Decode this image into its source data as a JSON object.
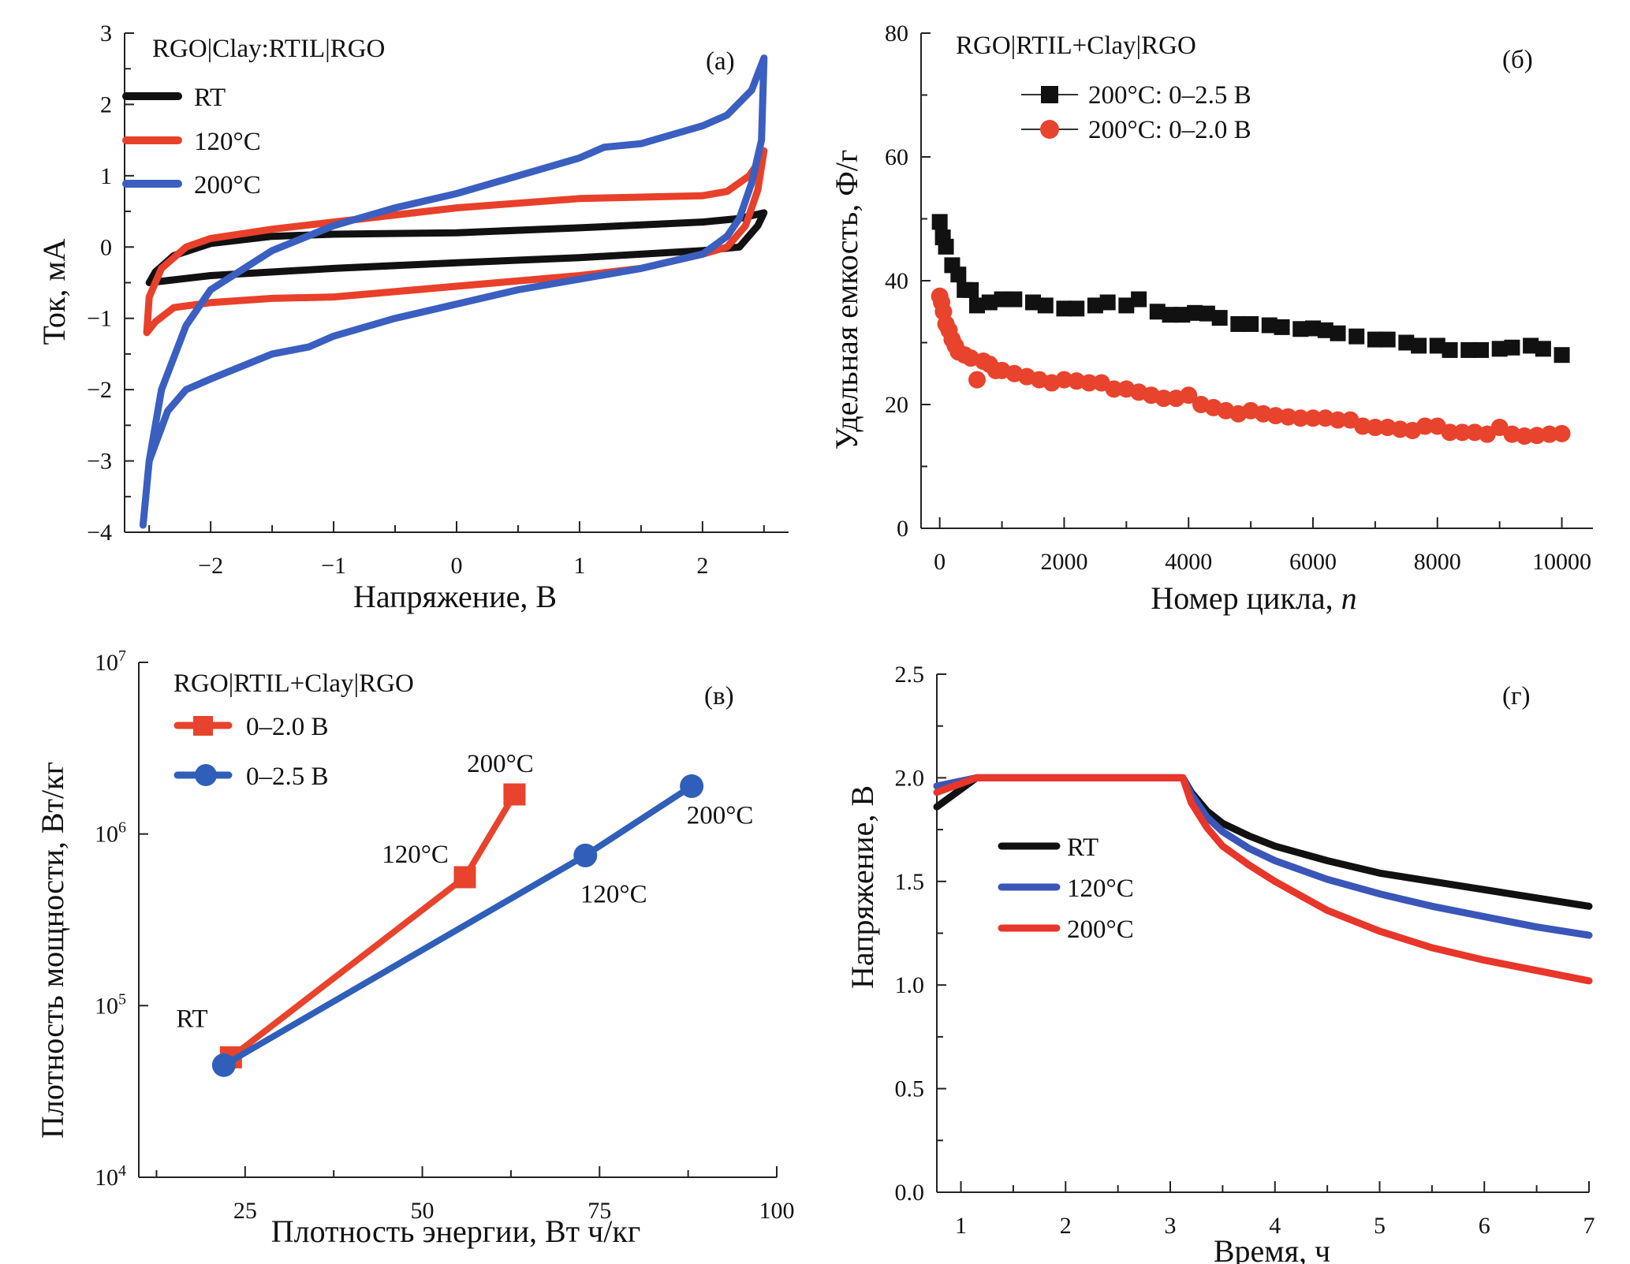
{
  "chart_data": [
    {
      "id": "a",
      "type": "line",
      "panel_label": "(a)",
      "title": "RGO|Clay:RTIL|RGO",
      "xlabel": "Напряжение, В",
      "ylabel": "Ток, мА",
      "xlim": [
        -2.7,
        2.7
      ],
      "ylim": [
        -4,
        3
      ],
      "xticks": [
        -2,
        -1,
        0,
        1,
        2
      ],
      "yticks": [
        -4,
        -3,
        -2,
        -1,
        0,
        1,
        2,
        3
      ],
      "legend_position": "top-left",
      "series": [
        {
          "name": "RT",
          "color": "#111111",
          "x": [
            -2.5,
            -2.45,
            -2.3,
            -2.0,
            -1.5,
            -1.0,
            0,
            1,
            2,
            2.3,
            2.5,
            2.45,
            2.3,
            2.0,
            1.0,
            0,
            -1.0,
            -2.0,
            -2.5
          ],
          "y": [
            -0.5,
            -0.35,
            -0.12,
            0.05,
            0.15,
            0.18,
            0.2,
            0.27,
            0.35,
            0.4,
            0.48,
            0.3,
            0.0,
            -0.05,
            -0.15,
            -0.22,
            -0.3,
            -0.4,
            -0.5
          ]
        },
        {
          "name": "120°C",
          "color": "#e8402a",
          "x": [
            -2.52,
            -2.5,
            -2.4,
            -2.2,
            -2.0,
            -1.5,
            -1.0,
            0,
            1,
            1.5,
            2.0,
            2.2,
            2.38,
            2.48,
            2.5,
            2.45,
            2.35,
            2.2,
            2.0,
            1.5,
            1.0,
            0,
            -1.0,
            -1.5,
            -2.0,
            -2.3,
            -2.45,
            -2.52
          ],
          "y": [
            -1.2,
            -0.7,
            -0.3,
            0.0,
            0.12,
            0.25,
            0.35,
            0.55,
            0.68,
            0.7,
            0.72,
            0.78,
            1.0,
            1.25,
            1.35,
            0.8,
            0.3,
            0.0,
            -0.1,
            -0.3,
            -0.4,
            -0.55,
            -0.7,
            -0.72,
            -0.78,
            -0.85,
            -1.05,
            -1.2
          ]
        },
        {
          "name": "200°C",
          "color": "#3a5fc0",
          "x": [
            -2.55,
            -2.5,
            -2.4,
            -2.2,
            -2.0,
            -1.5,
            -1.0,
            -0.5,
            0,
            0.5,
            1.0,
            1.2,
            1.5,
            2.0,
            2.2,
            2.4,
            2.5,
            2.48,
            2.4,
            2.3,
            2.2,
            2.0,
            1.5,
            1.0,
            0.5,
            0,
            -0.5,
            -1.0,
            -1.2,
            -1.5,
            -2.0,
            -2.2,
            -2.35,
            -2.5,
            -2.55
          ],
          "y": [
            -3.9,
            -3.0,
            -2.0,
            -1.1,
            -0.6,
            -0.05,
            0.3,
            0.55,
            0.75,
            1.0,
            1.25,
            1.4,
            1.45,
            1.7,
            1.85,
            2.2,
            2.65,
            1.5,
            0.9,
            0.4,
            0.15,
            -0.1,
            -0.3,
            -0.45,
            -0.6,
            -0.8,
            -1.0,
            -1.25,
            -1.4,
            -1.5,
            -1.85,
            -2.0,
            -2.3,
            -3.0,
            -3.9
          ]
        }
      ]
    },
    {
      "id": "b",
      "type": "scatter",
      "panel_label": "(б)",
      "title": "RGO|RTIL+Clay|RGO",
      "xlabel": "Номер цикла, ",
      "xlabel_italic": "n",
      "ylabel": "Удельная емкость, Ф/г",
      "xlim": [
        -300,
        10500
      ],
      "ylim": [
        0,
        80
      ],
      "xticks": [
        0,
        2000,
        4000,
        6000,
        8000,
        10000
      ],
      "yticks": [
        0,
        20,
        40,
        60,
        80
      ],
      "legend_position": "top-left",
      "series": [
        {
          "name": "200°C: 0–2.5 В",
          "color": "#111111",
          "marker": "square",
          "x": [
            0,
            50,
            100,
            200,
            300,
            400,
            500,
            600,
            800,
            1000,
            1200,
            1500,
            1700,
            2000,
            2200,
            2500,
            2700,
            3000,
            3200,
            3500,
            3700,
            3900,
            4100,
            4300,
            4500,
            4800,
            5000,
            5300,
            5500,
            5800,
            6000,
            6200,
            6400,
            6700,
            7000,
            7200,
            7500,
            7700,
            8000,
            8200,
            8500,
            8700,
            9000,
            9200,
            9500,
            9700,
            10000
          ],
          "y": [
            49.5,
            47,
            45.5,
            42.5,
            41,
            38.5,
            38.5,
            36,
            36.5,
            37,
            37,
            36.5,
            36,
            35.5,
            35.5,
            36,
            36.5,
            36,
            37,
            35,
            34.5,
            34.5,
            34.8,
            34.7,
            34,
            33,
            33,
            32.8,
            32.5,
            32.2,
            32.3,
            32,
            31.5,
            31,
            30.5,
            30.5,
            30,
            29.5,
            29.5,
            28.8,
            28.8,
            28.8,
            29,
            29.2,
            29.5,
            29,
            28
          ]
        },
        {
          "name": "200°C: 0–2.0 В",
          "color": "#e8432c",
          "marker": "circle",
          "x": [
            0,
            30,
            60,
            100,
            150,
            200,
            250,
            300,
            400,
            500,
            600,
            700,
            800,
            900,
            1000,
            1200,
            1400,
            1600,
            1800,
            2000,
            2200,
            2400,
            2600,
            2800,
            3000,
            3200,
            3400,
            3600,
            3800,
            4000,
            4200,
            4400,
            4600,
            4800,
            5000,
            5200,
            5400,
            5600,
            5800,
            6000,
            6200,
            6400,
            6600,
            6800,
            7000,
            7200,
            7400,
            7600,
            7800,
            8000,
            8200,
            8400,
            8600,
            8800,
            9000,
            9200,
            9400,
            9600,
            9800,
            10000
          ],
          "y": [
            37.5,
            36.5,
            35,
            33,
            32,
            30.5,
            29.5,
            28.5,
            28,
            27.5,
            24,
            27,
            26.5,
            25.5,
            25.5,
            25,
            24.5,
            24,
            23.5,
            24,
            23.8,
            23.5,
            23.5,
            22.5,
            22.5,
            22,
            21.5,
            21,
            21,
            21.5,
            20,
            19.5,
            19,
            18.5,
            19,
            18.5,
            18.2,
            18,
            17.8,
            17.8,
            17.8,
            17.5,
            17.5,
            16.5,
            16.3,
            16.3,
            16,
            15.8,
            16.5,
            16.5,
            15.5,
            15.5,
            15.5,
            15.2,
            16.3,
            15.2,
            14.9,
            15,
            15.2,
            15.3
          ]
        }
      ]
    },
    {
      "id": "c",
      "type": "line",
      "panel_label": "(в)",
      "title": "RGO|RTIL+Clay|RGO",
      "xlabel": "Плотность энергии, Вт ч/кг",
      "ylabel": "Плотность мощности, Вт/кг",
      "xlim": [
        10,
        100
      ],
      "ylim": [
        10000,
        10000000
      ],
      "yscale": "log",
      "xticks": [
        25,
        50,
        75,
        100
      ],
      "yticks": [
        {
          "base": "10",
          "exp": "4"
        },
        {
          "base": "10",
          "exp": "5"
        },
        {
          "base": "10",
          "exp": "6"
        },
        {
          "base": "10",
          "exp": "7"
        }
      ],
      "legend_position": "top-left",
      "series": [
        {
          "name": "0–2.0 В",
          "color": "#e8432c",
          "marker": "square",
          "x": [
            23,
            56,
            63
          ],
          "y": [
            50000,
            560000,
            1700000
          ]
        },
        {
          "name": "0–2.5 В",
          "color": "#2f5fb8",
          "marker": "circle",
          "x": [
            22,
            73,
            88
          ],
          "y": [
            45000,
            750000,
            1900000
          ]
        }
      ],
      "annotations": [
        {
          "text": "RT",
          "x": 17.5,
          "y": 75000
        },
        {
          "text": "120°C",
          "x": 49,
          "y": 680000
        },
        {
          "text": "200°C",
          "x": 61,
          "y": 2300000
        },
        {
          "text": "120°C",
          "x": 77,
          "y": 400000
        },
        {
          "text": "200°C",
          "x": 92,
          "y": 1150000
        }
      ]
    },
    {
      "id": "d",
      "type": "line",
      "panel_label": "(г)",
      "title": "",
      "xlabel": "Время, ч",
      "ylabel": "Напряжение, В",
      "xlim": [
        0.77,
        7
      ],
      "ylim": [
        0,
        2.5
      ],
      "xticks": [
        1,
        2,
        3,
        4,
        5,
        6,
        7
      ],
      "yticks": [
        "0.0",
        "0.5",
        "1.0",
        "1.5",
        "2.0",
        "2.5"
      ],
      "legend_position": "center-left",
      "series": [
        {
          "name": "RT",
          "color": "#111111",
          "x": [
            0.77,
            1.15,
            3.12,
            3.2,
            3.35,
            3.5,
            3.75,
            4.0,
            4.5,
            5.0,
            5.5,
            6.0,
            6.5,
            7.0
          ],
          "y": [
            1.86,
            2.0,
            2.0,
            1.93,
            1.84,
            1.78,
            1.72,
            1.67,
            1.6,
            1.54,
            1.5,
            1.46,
            1.42,
            1.38
          ]
        },
        {
          "name": "120°C",
          "color": "#3a56b8",
          "x": [
            0.77,
            1.15,
            3.12,
            3.2,
            3.35,
            3.5,
            3.75,
            4.0,
            4.5,
            5.0,
            5.5,
            6.0,
            6.5,
            7.0
          ],
          "y": [
            1.96,
            2.0,
            2.0,
            1.92,
            1.81,
            1.74,
            1.66,
            1.6,
            1.51,
            1.44,
            1.38,
            1.33,
            1.28,
            1.24
          ]
        },
        {
          "name": "200°C",
          "color": "#e8362a",
          "x": [
            0.77,
            1.15,
            3.12,
            3.2,
            3.35,
            3.5,
            3.75,
            4.0,
            4.5,
            5.0,
            5.5,
            6.0,
            6.5,
            7.0
          ],
          "y": [
            1.93,
            2.0,
            2.0,
            1.88,
            1.76,
            1.67,
            1.58,
            1.5,
            1.36,
            1.26,
            1.18,
            1.12,
            1.07,
            1.02
          ]
        }
      ]
    }
  ]
}
